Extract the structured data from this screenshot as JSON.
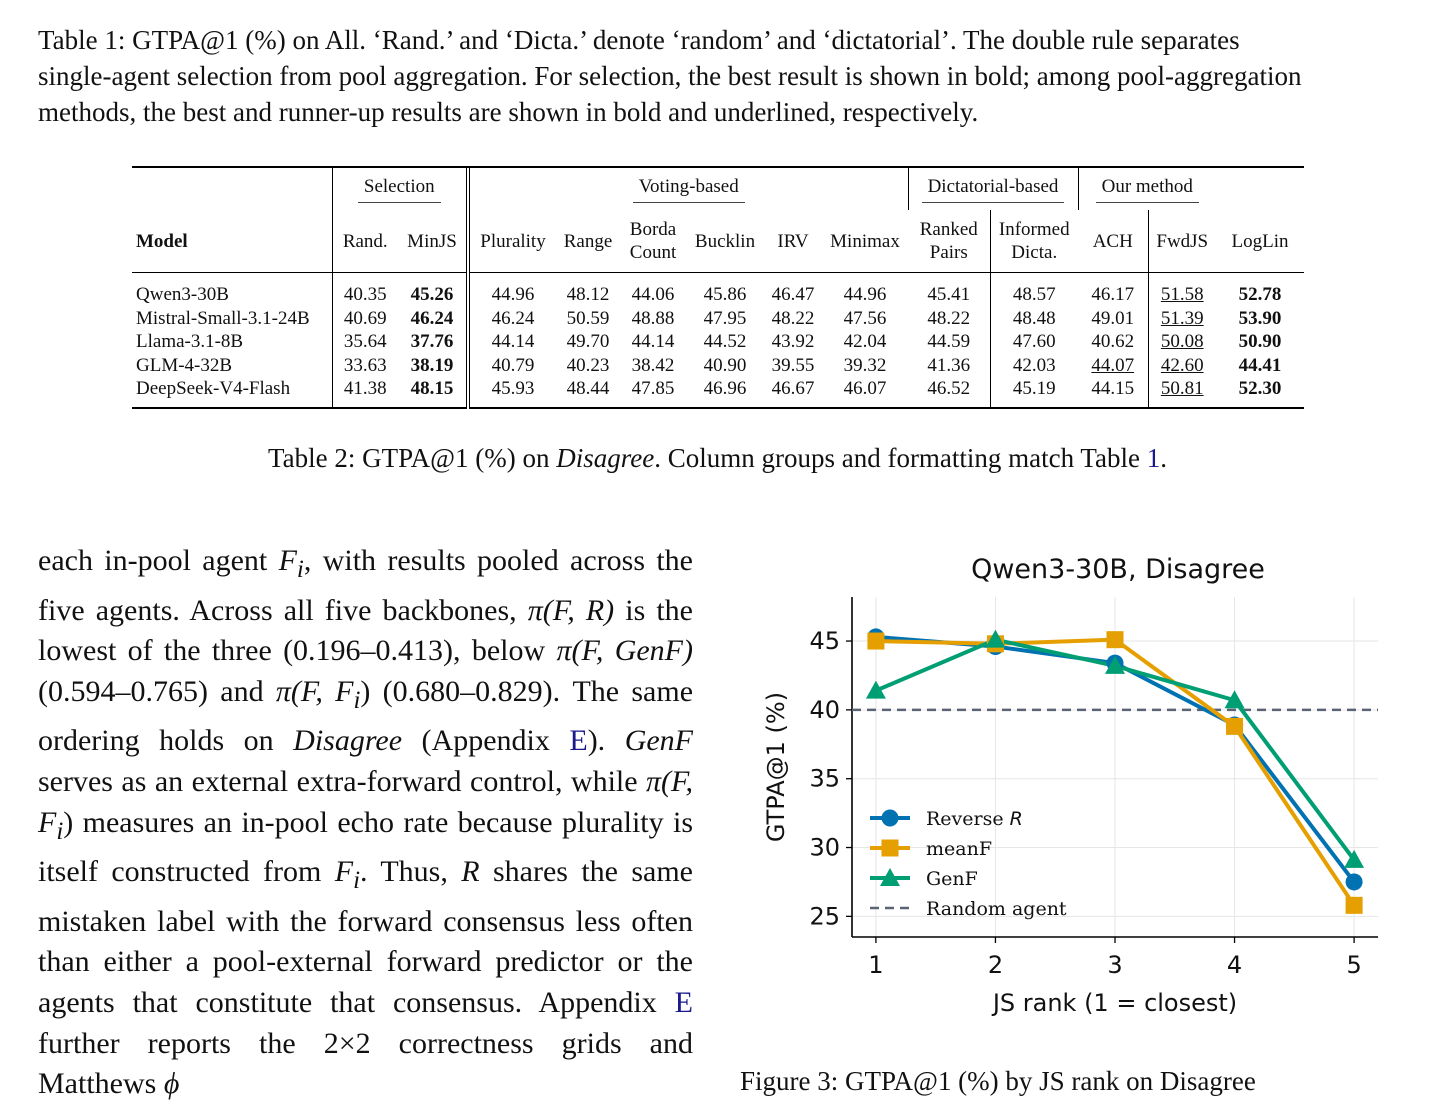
{
  "caption1": {
    "lines": [
      "Table 1: GTPA@1 (%) on All. ‘Rand.’ and ‘Dicta.’ denote ‘random’ and ‘dictatorial’. The double rule separates",
      "single-agent selection from pool aggregation. For selection, the best result is shown in bold; among pool-aggregation",
      "methods, the best and runner-up results are shown in bold and underlined, respectively."
    ]
  },
  "table": {
    "groups": {
      "selection": "Selection",
      "voting": "Voting-based",
      "dictatorial": "Dictatorial-based",
      "ours": "Our method"
    },
    "headers": {
      "model": "Model",
      "rand": "Rand.",
      "minjs": "MinJS",
      "plurality": "Plurality",
      "range": "Range",
      "borda_1": "Borda",
      "borda_2": "Count",
      "bucklin": "Bucklin",
      "irv": "IRV",
      "minimax": "Minimax",
      "ranked_1": "Ranked",
      "ranked_2": "Pairs",
      "informed_1": "Informed",
      "informed_2": "Dicta.",
      "ach": "ACH",
      "fwdjs": "FwdJS",
      "loglin": "LogLin"
    },
    "rows": [
      {
        "model": "Qwen3-30B",
        "values": [
          "40.35",
          "45.26",
          "44.96",
          "48.12",
          "44.06",
          "45.86",
          "46.47",
          "44.96",
          "45.41",
          "48.57",
          "46.17",
          "51.58",
          "52.78"
        ]
      },
      {
        "model": "Mistral-Small-3.1-24B",
        "values": [
          "40.69",
          "46.24",
          "46.24",
          "50.59",
          "48.88",
          "47.95",
          "48.22",
          "47.56",
          "48.22",
          "48.48",
          "49.01",
          "51.39",
          "53.90"
        ]
      },
      {
        "model": "Llama-3.1-8B",
        "values": [
          "35.64",
          "37.76",
          "44.14",
          "49.70",
          "44.14",
          "44.52",
          "43.92",
          "42.04",
          "44.59",
          "47.60",
          "40.62",
          "50.08",
          "50.90"
        ]
      },
      {
        "model": "GLM-4-32B",
        "values": [
          "33.63",
          "38.19",
          "40.79",
          "40.23",
          "38.42",
          "40.90",
          "39.55",
          "39.32",
          "41.36",
          "42.03",
          "44.07",
          "42.60",
          "44.41"
        ]
      },
      {
        "model": "DeepSeek-V4-Flash",
        "values": [
          "41.38",
          "48.15",
          "45.93",
          "48.44",
          "47.85",
          "46.96",
          "46.67",
          "46.07",
          "46.52",
          "45.19",
          "44.15",
          "50.81",
          "52.30"
        ]
      }
    ]
  },
  "caption2": {
    "prefix": "Table 2: GTPA@1 (%) on ",
    "emph": "Disagree",
    "middle": ". Column groups and formatting match Table ",
    "ref": "1",
    "suffix": "."
  },
  "body": {
    "t1": "each in-pool agent ",
    "v_Fi1": "F",
    "sub_i1": "i",
    "t2": ", with results pooled across the five agents. Across all five backbones, ",
    "m1": "π(F, R)",
    "t3": " is the lowest of the three (0.196–0.413), below ",
    "m2": "π(F, GenF)",
    "t4": " (0.594–0.765) and ",
    "m3": "π(F, F",
    "m3_sub": "i",
    "m3_end": ")",
    "t5": " (0.680–0.829). The same ordering holds on ",
    "emph1": "Disagree",
    "t6": " (Appendix ",
    "ref1": "E",
    "t7": "). ",
    "m4": "GenF",
    "t8": " serves as an external extra-forward control, while ",
    "m5": "π(F, F",
    "m5_sub": "i",
    "m5_end": ")",
    "t9": " measures an in-pool echo rate because plurality is itself constructed from ",
    "v_Fi2": "F",
    "sub_i2": "i",
    "t10": ". Thus, ",
    "v_R": "R",
    "t11": " shares the same mistaken label with the forward consensus less often than either a pool-external forward predictor or the agents that constitute that consensus. Appendix ",
    "ref2": "E",
    "t12": " further reports the 2×2 correctness grids and Matthews ",
    "v_phi": "ϕ"
  },
  "figure_caption_cut": "Figure 3: GTPA@1 (%) by JS rank on Disagree",
  "chart_data": {
    "type": "line",
    "title": "Qwen3-30B, Disagree",
    "xlabel": "JS rank (1 = closest)",
    "ylabel": "GTPA@1 (%)",
    "x": [
      1,
      2,
      3,
      4,
      5
    ],
    "xlim": [
      0.8,
      5.2
    ],
    "ylim": [
      23.5,
      48.2
    ],
    "yticks": [
      25,
      30,
      35,
      40,
      45
    ],
    "grid": true,
    "legend_position": "lower-left",
    "series": [
      {
        "name": "Reverse R",
        "legend_text": "Reverse ",
        "legend_italic": "R",
        "values": [
          45.3,
          44.6,
          43.4,
          38.9,
          27.5
        ],
        "color": "#0072b2",
        "marker": "circle"
      },
      {
        "name": "meanF",
        "values": [
          45.0,
          44.8,
          45.1,
          38.8,
          25.8
        ],
        "color": "#e69f00",
        "marker": "square"
      },
      {
        "name": "GenF",
        "values": [
          41.4,
          45.1,
          43.2,
          40.7,
          29.1
        ],
        "color": "#009e73",
        "marker": "triangle"
      }
    ],
    "reference_line": {
      "name": "Random agent",
      "value": 40.0,
      "color": "#5a6472",
      "style": "dashed"
    }
  }
}
